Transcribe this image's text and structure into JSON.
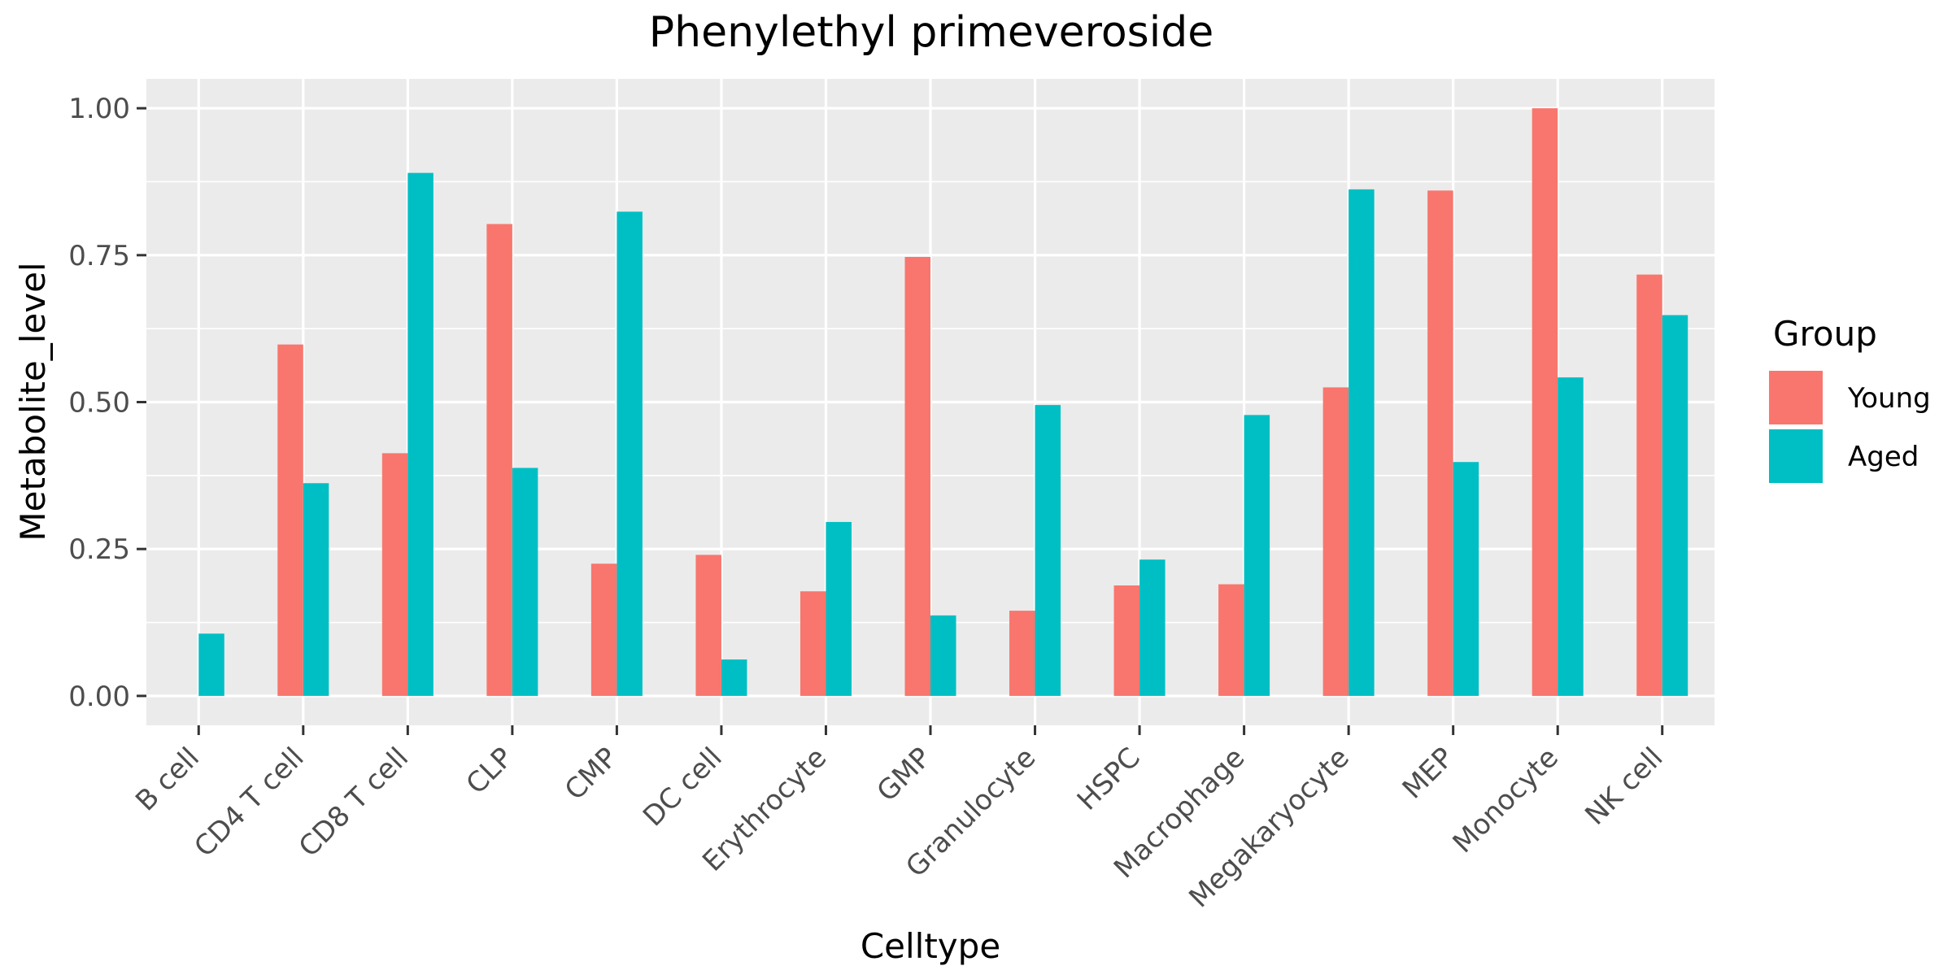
{
  "chart_data": {
    "type": "bar",
    "title": "Phenylethyl primeveroside",
    "xlabel": "Celltype",
    "ylabel": "Metabolite_level",
    "categories": [
      "B cell",
      "CD4 T cell",
      "CD8 T cell",
      "CLP",
      "CMP",
      "DC cell",
      "Erythrocyte",
      "GMP",
      "Granulocyte",
      "HSPC",
      "Macrophage",
      "Megakaryocyte",
      "MEP",
      "Monocyte",
      "NK cell"
    ],
    "series": [
      {
        "name": "Young",
        "color": "#F8766D",
        "values": [
          0.0,
          0.598,
          0.413,
          0.803,
          0.225,
          0.24,
          0.178,
          0.747,
          0.145,
          0.188,
          0.19,
          0.525,
          0.86,
          1.0,
          0.717
        ]
      },
      {
        "name": "Aged",
        "color": "#00BFC4",
        "values": [
          0.106,
          0.362,
          0.89,
          0.388,
          0.824,
          0.062,
          0.296,
          0.137,
          0.495,
          0.232,
          0.478,
          0.862,
          0.398,
          0.542,
          0.648
        ]
      }
    ],
    "ylim": [
      -0.05,
      1.05
    ],
    "yticks": [
      0.0,
      0.25,
      0.5,
      0.75,
      1.0
    ],
    "ytick_labels": [
      "0.00",
      "0.25",
      "0.50",
      "0.75",
      "1.00"
    ],
    "legend": {
      "title": "Group",
      "position": "right"
    },
    "grid": true,
    "panel_color": "#EBEBEB",
    "grid_color": "#FFFFFF"
  }
}
